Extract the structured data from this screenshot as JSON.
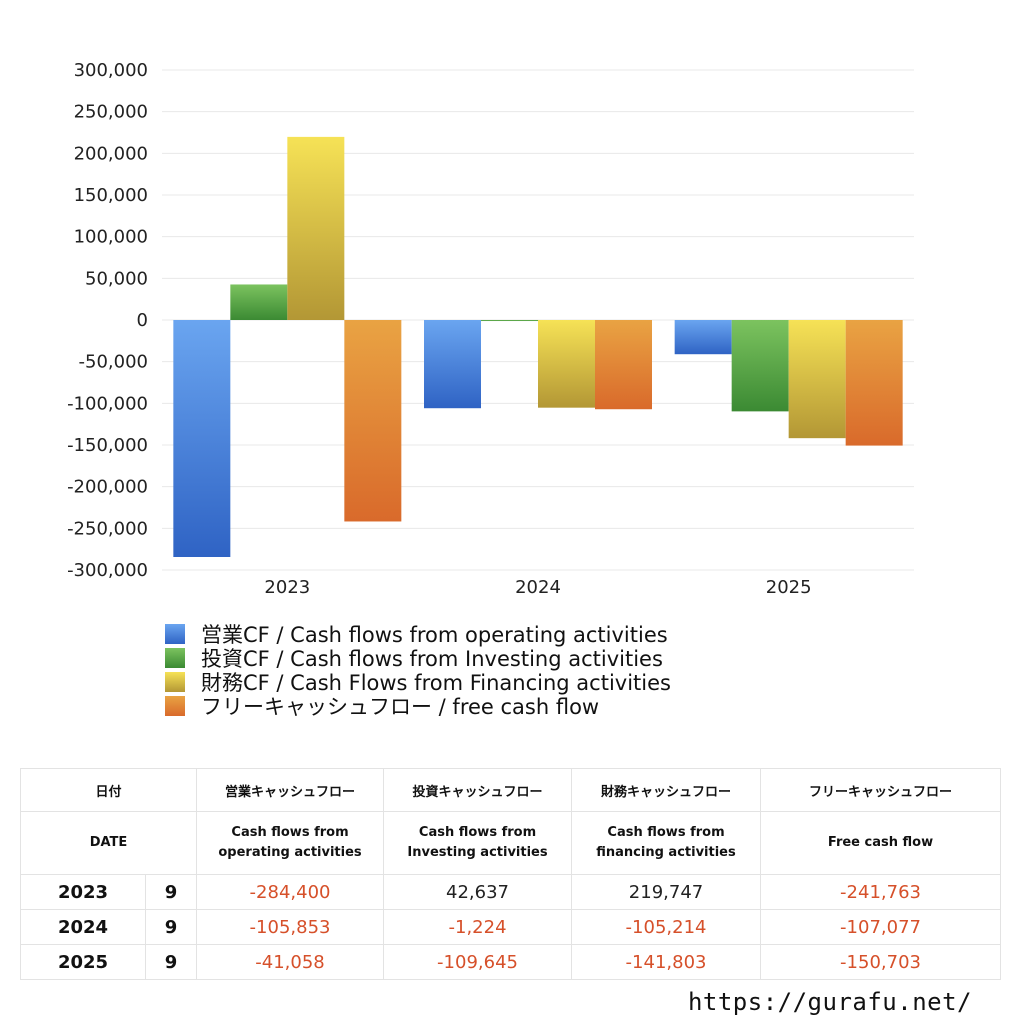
{
  "colors": {
    "operating": [
      "#6aa5f0",
      "#2f63c4"
    ],
    "investing": [
      "#7cc35f",
      "#3b8a33"
    ],
    "financing": [
      "#f6e256",
      "#b39735"
    ],
    "free": [
      "#e9a343",
      "#d96a2b"
    ],
    "negative_text": "#d6502a"
  },
  "chart_data": {
    "type": "bar",
    "categories": [
      "2023",
      "2024",
      "2025"
    ],
    "series": [
      {
        "name": "営業CF / Cash flows from operating activities",
        "values": [
          -284400,
          -105853,
          -41058
        ]
      },
      {
        "name": "投資CF / Cash flows from Investing activities",
        "values": [
          42637,
          -1224,
          -109645
        ]
      },
      {
        "name": "財務CF / Cash Flows from Financing activities",
        "values": [
          219747,
          -105214,
          -141803
        ]
      },
      {
        "name": "フリーキャッシュフロー / free cash flow",
        "values": [
          -241763,
          -107077,
          -150703
        ]
      }
    ],
    "ylim": [
      -300000,
      300000
    ],
    "yticks": [
      "300,000",
      "250,000",
      "200,000",
      "150,000",
      "100,000",
      "50,000",
      "0",
      "-50,000",
      "-100,000",
      "-150,000",
      "-200,000",
      "-250,000",
      "-300,000"
    ],
    "grid": true,
    "legend": "bottom"
  },
  "table": {
    "header_jp": {
      "date": "日付",
      "operating": "営業キャッシュフロー",
      "investing": "投資キャッシュフロー",
      "financing": "財務キャッシュフロー",
      "free": "フリーキャッシュフロー"
    },
    "header_en": {
      "date": "DATE",
      "operating_1": "Cash flows from",
      "operating_2": "operating activities",
      "investing_1": "Cash flows from",
      "investing_2": "Investing activities",
      "financing_1": "Cash flows from",
      "financing_2": "financing activities",
      "free": "Free cash flow"
    },
    "rows": [
      {
        "year": "2023",
        "month": "9",
        "operating": "-284,400",
        "investing": "42,637",
        "financing": "219,747",
        "free": "-241,763"
      },
      {
        "year": "2024",
        "month": "9",
        "operating": "-105,853",
        "investing": "-1,224",
        "financing": "-105,214",
        "free": "-107,077"
      },
      {
        "year": "2025",
        "month": "9",
        "operating": "-41,058",
        "investing": "-109,645",
        "financing": "-141,803",
        "free": "-150,703"
      }
    ]
  },
  "footer": {
    "url": "https://gurafu.net/"
  }
}
